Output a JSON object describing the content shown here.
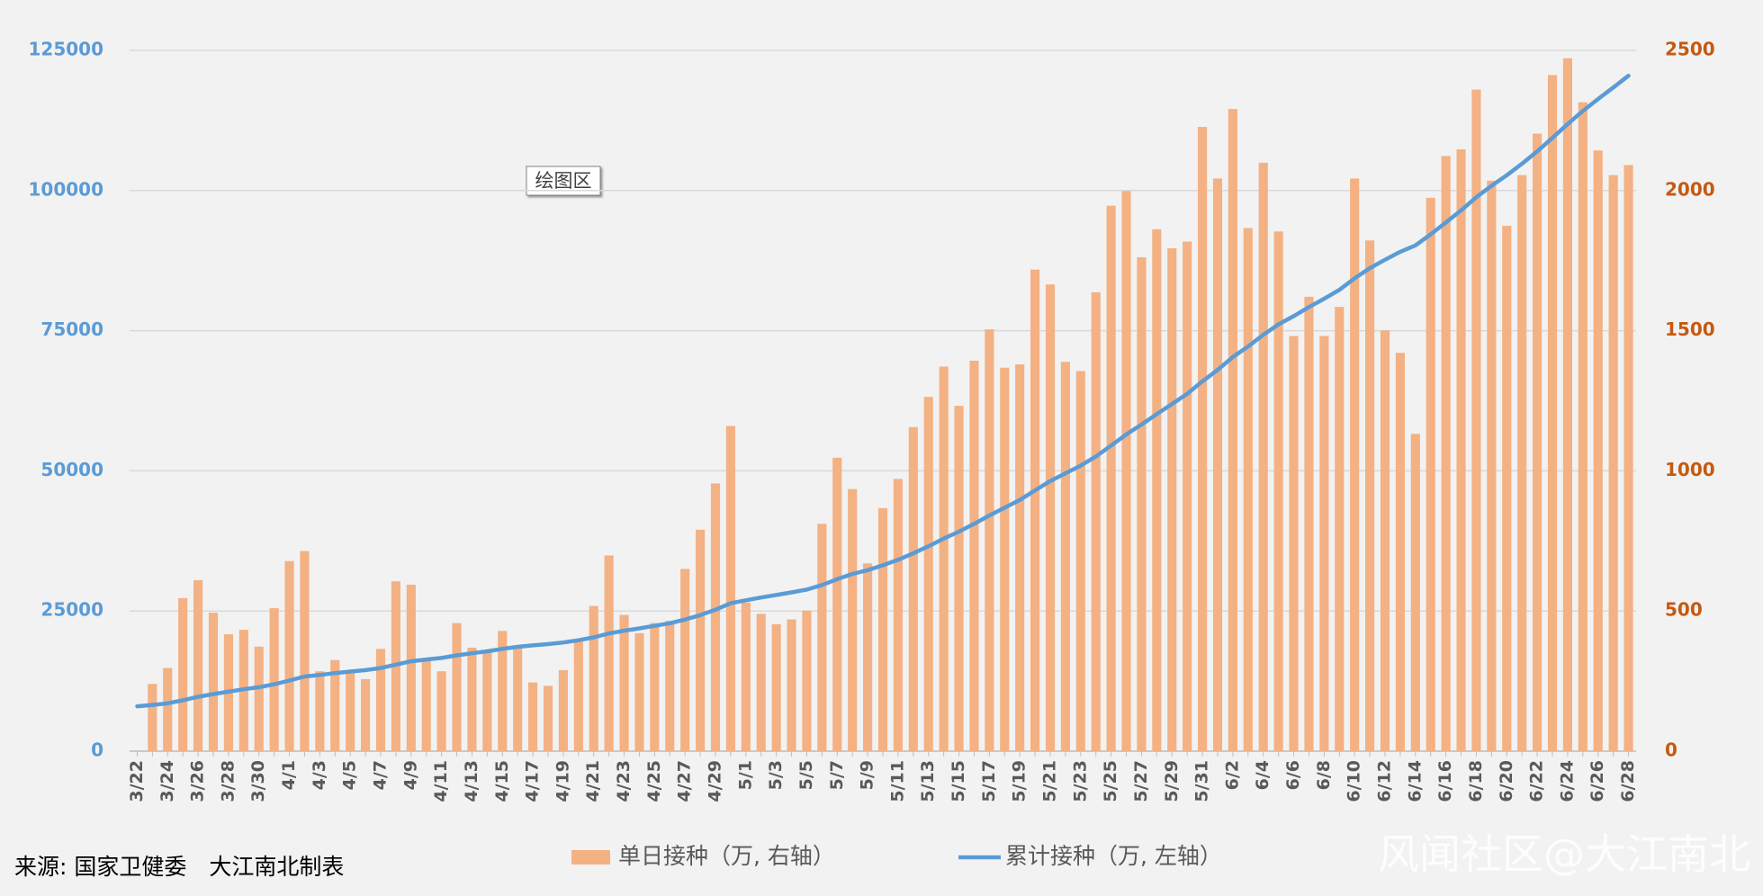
{
  "chart_data": {
    "type": "bar-line",
    "categories": [
      "3/22",
      null,
      "3/24",
      null,
      "3/26",
      null,
      "3/28",
      null,
      "3/30",
      null,
      "4/1",
      null,
      "4/3",
      null,
      "4/5",
      null,
      "4/7",
      null,
      "4/9",
      null,
      "4/11",
      null,
      "4/13",
      null,
      "4/15",
      null,
      "4/17",
      null,
      "4/19",
      null,
      "4/21",
      null,
      "4/23",
      null,
      "4/25",
      null,
      "4/27",
      null,
      "4/29",
      null,
      "5/1",
      null,
      "5/3",
      null,
      "5/5",
      null,
      "5/7",
      null,
      "5/9",
      null,
      "5/11",
      null,
      "5/13",
      null,
      "5/15",
      null,
      "5/17",
      null,
      "5/19",
      null,
      "5/21",
      null,
      "5/23",
      null,
      "5/25",
      null,
      "5/27",
      null,
      "5/29",
      null,
      "5/31",
      null,
      "6/2",
      null,
      "6/4",
      null,
      "6/6",
      null,
      "6/8",
      null,
      "6/10",
      null,
      "6/12",
      null,
      "6/14",
      null,
      "6/16",
      null,
      "6/18",
      null,
      "6/20",
      null,
      "6/22",
      null,
      "6/24",
      null,
      "6/26",
      null,
      "6/28"
    ],
    "series": [
      {
        "name": "单日接种（万, 右轴）",
        "type": "bar",
        "axis": "y2",
        "color": "#f4b183",
        "values": [
          null,
          240,
          297,
          546,
          610,
          494,
          417,
          433,
          373,
          510,
          678,
          714,
          285,
          325,
          281,
          257,
          365,
          606,
          594,
          321,
          285,
          457,
          369,
          361,
          429,
          373,
          245,
          233,
          289,
          393,
          518,
          698,
          486,
          421,
          457,
          465,
          650,
          790,
          955,
          1160,
          530,
          490,
          453,
          470,
          502,
          811,
          1047,
          935,
          670,
          867,
          971,
          1156,
          1264,
          1372,
          1232,
          1393,
          1505,
          1368,
          1380,
          1718,
          1665,
          1389,
          1356,
          1637,
          1946,
          1998,
          1762,
          1862,
          1794,
          1818,
          2227,
          2043,
          2291,
          1866,
          2099,
          1854,
          1481,
          1621,
          1481,
          1585,
          2043,
          1822,
          1501,
          1421,
          1132,
          1974,
          2123,
          2147,
          2360,
          2035,
          1874,
          2055,
          2203,
          2412,
          2472,
          2315,
          2143,
          2055,
          2091
        ]
      },
      {
        "name": "累计接种（万, 左轴）",
        "type": "line",
        "axis": "y",
        "color": "#5b9bd5",
        "values": [
          8000,
          8240,
          8537,
          9083,
          9693,
          10187,
          10604,
          11037,
          11410,
          11920,
          12598,
          13312,
          13597,
          13922,
          14203,
          14460,
          14825,
          15431,
          16025,
          16346,
          16631,
          17088,
          17457,
          17818,
          18247,
          18620,
          18865,
          19098,
          19387,
          19780,
          20298,
          20996,
          21482,
          21903,
          22360,
          22825,
          23475,
          24265,
          25220,
          26380,
          26910,
          27400,
          27853,
          28323,
          28825,
          29636,
          30683,
          31618,
          32288,
          33155,
          34126,
          35282,
          36546,
          37918,
          39150,
          40543,
          42048,
          43416,
          44796,
          46514,
          48179,
          49568,
          50924,
          52561,
          54507,
          56505,
          58267,
          60129,
          61923,
          63741,
          65968,
          68011,
          70302,
          72168,
          74267,
          76121,
          77602,
          79223,
          80704,
          82289,
          84332,
          86154,
          87655,
          89076,
          90208,
          92182,
          94305,
          96452,
          98812,
          100847,
          102721,
          104776,
          106979,
          109391,
          111863,
          114178,
          116321,
          118376,
          120467
        ]
      }
    ],
    "ylim": [
      0,
      125000
    ],
    "yticks": [
      0,
      25000,
      50000,
      75000,
      100000,
      125000
    ],
    "y2lim": [
      0,
      2500
    ],
    "y2ticks": [
      0,
      500,
      1000,
      1500,
      2000,
      2500
    ],
    "grid": true,
    "annotations": [
      "绘图区"
    ],
    "source": "来源:  国家卫健委　大江南北制表",
    "watermark": "风闻社区@大江南北"
  }
}
